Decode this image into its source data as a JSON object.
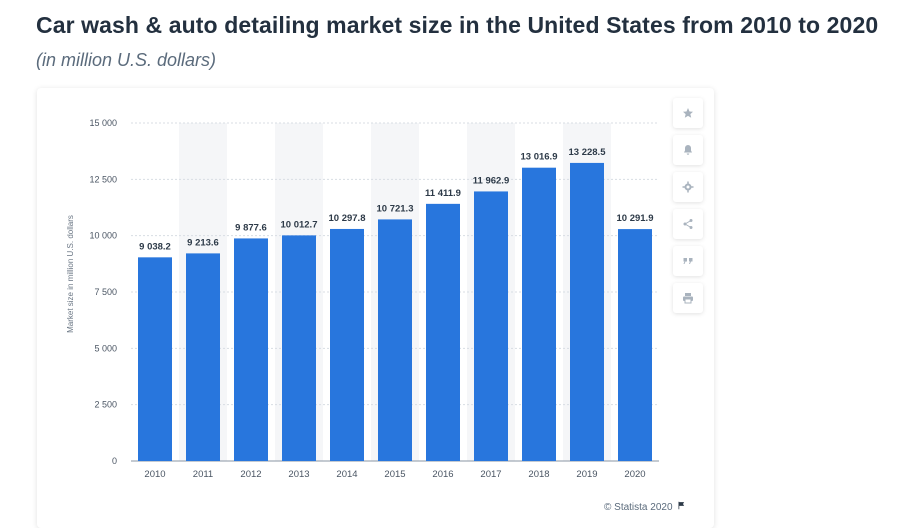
{
  "header": {
    "title": "Car wash & auto detailing market size in the United States from 2010 to 2020",
    "subtitle": "(in million U.S. dollars)"
  },
  "tools": [
    {
      "name": "favorite",
      "icon": "star-icon"
    },
    {
      "name": "notification",
      "icon": "bell-icon"
    },
    {
      "name": "settings",
      "icon": "gear-icon"
    },
    {
      "name": "share",
      "icon": "share-icon"
    },
    {
      "name": "cite",
      "icon": "quote-icon"
    },
    {
      "name": "print",
      "icon": "print-icon"
    }
  ],
  "credit": {
    "text": "© Statista 2020",
    "icon": "flag-icon"
  },
  "colors": {
    "bar": "#2876dd",
    "grid": "#d8dde3",
    "alt_band": "#f5f6f8"
  },
  "chart_data": {
    "type": "bar",
    "categories": [
      "2010",
      "2011",
      "2012",
      "2013",
      "2014",
      "2015",
      "2016",
      "2017",
      "2018",
      "2019",
      "2020"
    ],
    "values": [
      9038.2,
      9213.6,
      9877.6,
      10012.7,
      10297.8,
      10721.3,
      11411.9,
      11962.9,
      13016.9,
      13228.5,
      10291.9
    ],
    "value_labels": [
      "9 038.2",
      "9 213.6",
      "9 877.6",
      "10 012.7",
      "10 297.8",
      "10 721.3",
      "11 411.9",
      "11 962.9",
      "13 016.9",
      "13 228.5",
      "10 291.9"
    ],
    "title": "Car wash & auto detailing market size in the United States from 2010 to 2020",
    "ylabel": "Market size in million U.S. dollars",
    "xlabel": "",
    "ylim": [
      0,
      15000
    ],
    "yticks": [
      0,
      2500,
      5000,
      7500,
      10000,
      12500,
      15000
    ],
    "ytick_labels": [
      "0",
      "2 500",
      "5 000",
      "7 500",
      "10 000",
      "12 500",
      "15 000"
    ],
    "grid": true,
    "legend": "none"
  }
}
